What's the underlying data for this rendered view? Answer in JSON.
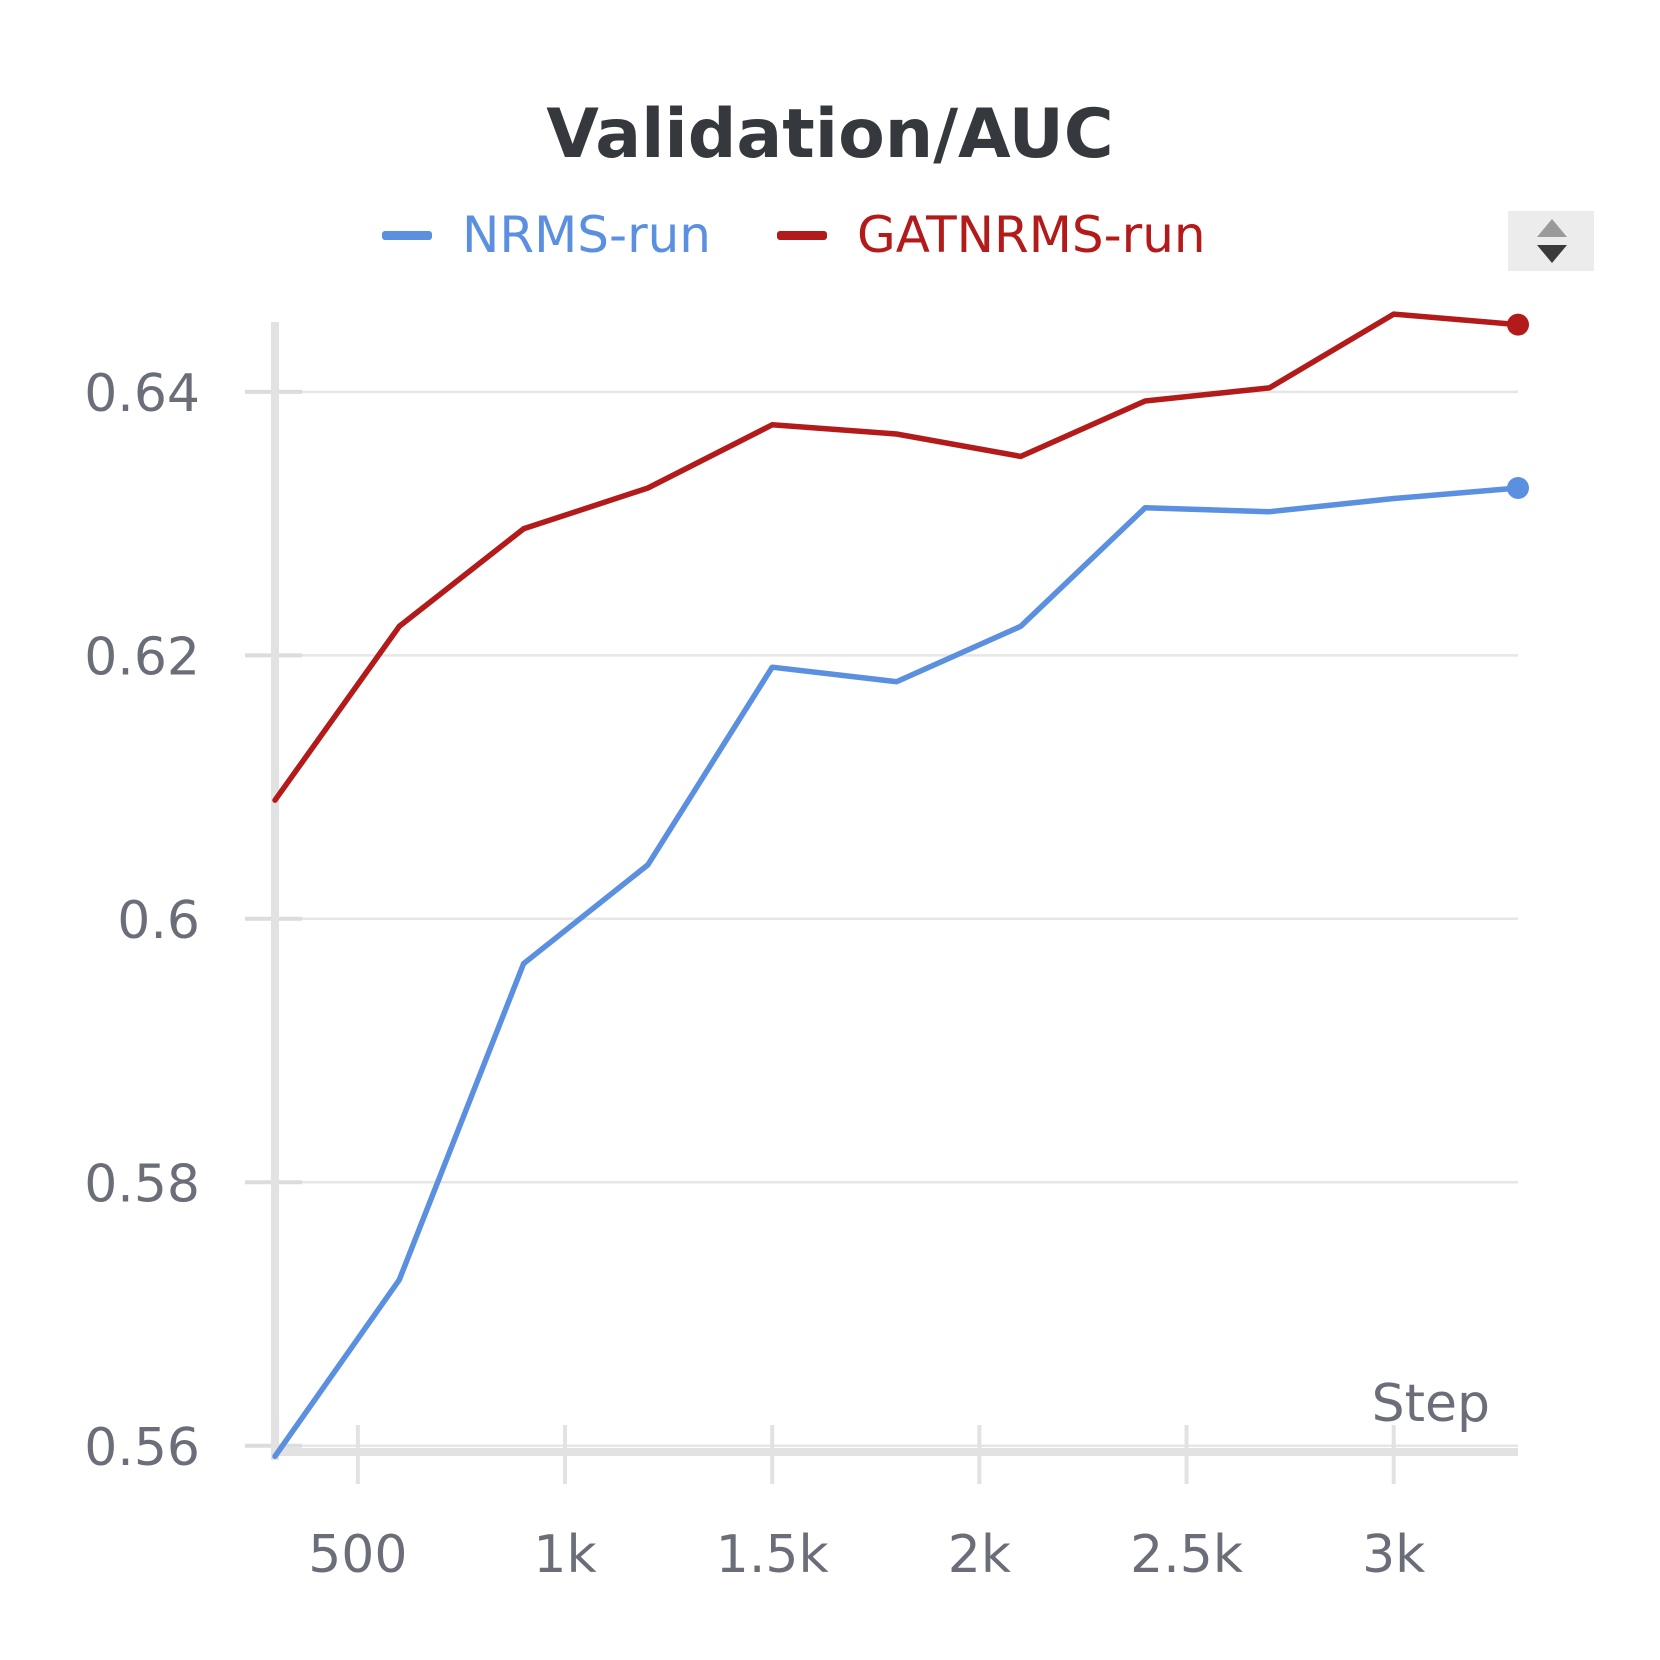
{
  "chart_data": {
    "type": "line",
    "title": "Validation/AUC",
    "xlabel": "Step",
    "ylabel": "",
    "xlim": [
      300,
      3300
    ],
    "ylim": [
      0.5593,
      0.6453
    ],
    "x_ticks": [
      500,
      1000,
      1500,
      2000,
      2500,
      3000
    ],
    "x_tick_labels": [
      "500",
      "1k",
      "1.5k",
      "2k",
      "2.5k",
      "3k"
    ],
    "y_ticks": [
      0.56,
      0.58,
      0.6,
      0.62,
      0.64
    ],
    "y_tick_labels": [
      "0.56",
      "0.58",
      "0.6",
      "0.62",
      "0.64"
    ],
    "grid": true,
    "legend": "top",
    "series": [
      {
        "name": "NRMS-run",
        "color": "#5b8fe0",
        "x": [
          300,
          600,
          900,
          1200,
          1500,
          1800,
          2100,
          2400,
          2700,
          3000,
          3300
        ],
        "y": [
          0.5592,
          0.5726,
          0.5966,
          0.6041,
          0.6191,
          0.618,
          0.6222,
          0.6312,
          0.6309,
          0.6319,
          0.6327
        ]
      },
      {
        "name": "GATNRMS-run",
        "color": "#b31b1b",
        "x": [
          300,
          600,
          900,
          1200,
          1500,
          1800,
          2100,
          2400,
          2700,
          3000,
          3300
        ],
        "y": [
          0.609,
          0.6222,
          0.6296,
          0.6327,
          0.6375,
          0.6368,
          0.6351,
          0.6393,
          0.6403,
          0.6459,
          0.6451
        ]
      }
    ]
  }
}
